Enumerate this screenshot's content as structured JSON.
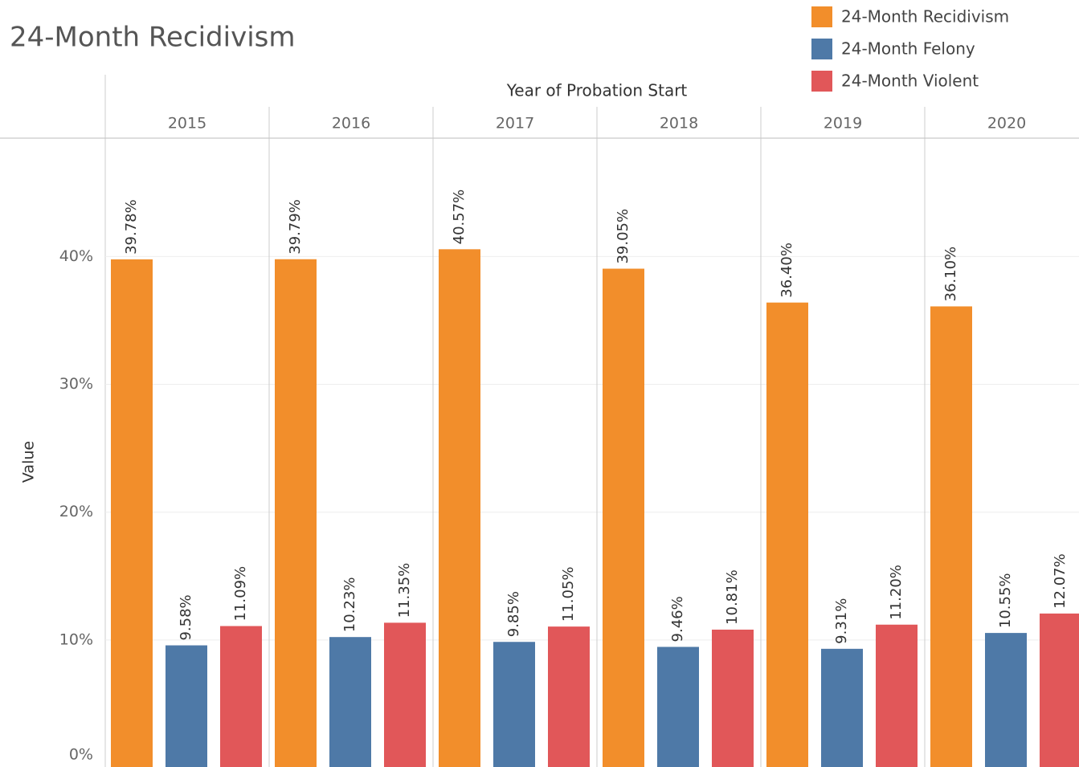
{
  "chart_data": {
    "type": "bar",
    "title": "24-Month Recidivism",
    "x_label": "Year of Probation Start",
    "y_label": "Value",
    "categories": [
      "2015",
      "2016",
      "2017",
      "2018",
      "2019",
      "2020"
    ],
    "series": [
      {
        "name": "24-Month Recidivism",
        "color": "#f28e2b",
        "values": [
          39.78,
          39.79,
          40.57,
          39.05,
          36.4,
          36.1
        ],
        "value_labels": [
          "39.78%",
          "39.79%",
          "40.57%",
          "39.05%",
          "36.40%",
          "36.10%"
        ]
      },
      {
        "name": "24-Month Felony",
        "color": "#4e79a7",
        "values": [
          9.58,
          10.23,
          9.85,
          9.46,
          9.31,
          10.55
        ],
        "value_labels": [
          "9.58%",
          "10.23%",
          "9.85%",
          "9.46%",
          "9.31%",
          "10.55%"
        ]
      },
      {
        "name": "24-Month Violent",
        "color": "#e15759",
        "values": [
          11.09,
          11.35,
          11.05,
          10.81,
          11.2,
          12.07
        ],
        "value_labels": [
          "11.09%",
          "11.35%",
          "11.05%",
          "10.81%",
          "11.20%",
          "12.07%"
        ]
      }
    ],
    "ylim": [
      0,
      49.2
    ],
    "yticks": [
      {
        "value": 0,
        "label": "0%"
      },
      {
        "value": 10,
        "label": "10%"
      },
      {
        "value": 20,
        "label": "20%"
      },
      {
        "value": 30,
        "label": "30%"
      },
      {
        "value": 40,
        "label": "40%"
      }
    ],
    "grid": true,
    "legend": "top-right"
  }
}
